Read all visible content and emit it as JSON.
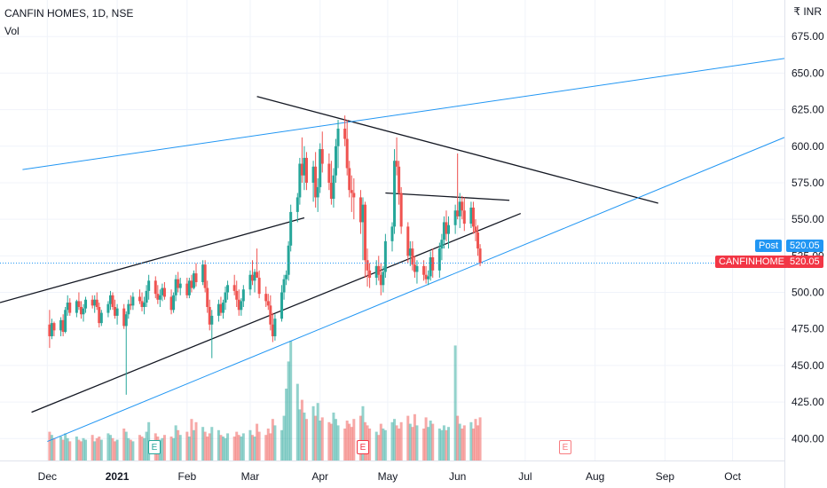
{
  "header": {
    "title": "CANFIN HOMES, 1D, NSE",
    "volume_label": "Vol",
    "currency": "₹ INR"
  },
  "price_tags": {
    "post": {
      "label": "Post",
      "value": "520.05",
      "color": "#2196f3"
    },
    "last": {
      "label": "CANFINHOME",
      "value": "520.05",
      "color": "#f23645"
    }
  },
  "earnings_marker": "E",
  "colors": {
    "up": "#26a69a",
    "down": "#ef5350",
    "trendline_black": "#131722",
    "trendline_blue": "#2196f3",
    "grid": "#f0f3fa",
    "axis_text": "#131722"
  },
  "chart_data": {
    "type": "candlestick",
    "symbol": "CANFINHOME",
    "interval": "1D",
    "exchange": "NSE",
    "ylim": [
      385,
      700
    ],
    "y_ticks": [
      400,
      425,
      450,
      475,
      500,
      525,
      550,
      575,
      600,
      625,
      650,
      675
    ],
    "y_tick_labels": [
      "400.00",
      "425.00",
      "450.00",
      "475.00",
      "500.00",
      "525.00",
      "550.00",
      "575.00",
      "600.00",
      "625.00",
      "650.00",
      "675.00"
    ],
    "x_tick_labels": [
      "Dec",
      "2021",
      "Feb",
      "Mar",
      "Apr",
      "May",
      "Jun",
      "Jul",
      "Aug",
      "Sep",
      "Oct"
    ],
    "last_price": 520.05,
    "candles": [
      [
        478,
        488,
        462,
        470
      ],
      [
        470,
        482,
        468,
        479
      ],
      [
        479,
        480,
        470,
        474
      ],
      [
        474,
        483,
        470,
        481
      ],
      [
        481,
        485,
        470,
        473
      ],
      [
        473,
        490,
        472,
        488
      ],
      [
        488,
        498,
        484,
        493
      ],
      [
        493,
        496,
        484,
        486
      ],
      [
        486,
        495,
        483,
        494
      ],
      [
        494,
        500,
        488,
        490
      ],
      [
        490,
        494,
        482,
        485
      ],
      [
        485,
        492,
        480,
        489
      ],
      [
        489,
        497,
        486,
        495
      ],
      [
        495,
        498,
        489,
        491
      ],
      [
        491,
        498,
        486,
        495
      ],
      [
        495,
        500,
        488,
        490
      ],
      [
        490,
        493,
        476,
        479
      ],
      [
        479,
        488,
        477,
        486
      ],
      [
        486,
        494,
        483,
        492
      ],
      [
        492,
        501,
        488,
        498
      ],
      [
        498,
        500,
        488,
        490
      ],
      [
        490,
        495,
        482,
        484
      ],
      [
        484,
        492,
        478,
        489
      ],
      [
        489,
        492,
        475,
        477
      ],
      [
        477,
        487,
        430,
        485
      ],
      [
        485,
        495,
        482,
        492
      ],
      [
        492,
        498,
        488,
        491
      ],
      [
        491,
        500,
        488,
        497
      ],
      [
        497,
        502,
        492,
        494
      ],
      [
        494,
        500,
        487,
        490
      ],
      [
        490,
        497,
        485,
        493
      ],
      [
        493,
        505,
        490,
        501
      ],
      [
        501,
        512,
        495,
        508
      ],
      [
        508,
        511,
        496,
        499
      ],
      [
        499,
        505,
        492,
        495
      ],
      [
        495,
        502,
        490,
        498
      ],
      [
        498,
        506,
        494,
        503
      ],
      [
        503,
        507,
        495,
        497
      ],
      [
        497,
        502,
        485,
        488
      ],
      [
        488,
        500,
        486,
        498
      ],
      [
        498,
        512,
        494,
        509
      ],
      [
        509,
        514,
        500,
        503
      ],
      [
        503,
        510,
        498,
        506
      ],
      [
        506,
        510,
        496,
        498
      ],
      [
        498,
        510,
        496,
        508
      ],
      [
        508,
        512,
        500,
        503
      ],
      [
        503,
        515,
        502,
        513
      ],
      [
        513,
        520,
        504,
        507
      ],
      [
        507,
        522,
        505,
        519
      ],
      [
        519,
        522,
        500,
        503
      ],
      [
        503,
        508,
        486,
        490
      ],
      [
        490,
        495,
        474,
        478
      ],
      [
        478,
        488,
        455,
        484
      ],
      [
        484,
        495,
        480,
        492
      ],
      [
        492,
        497,
        484,
        486
      ],
      [
        486,
        495,
        482,
        493
      ],
      [
        493,
        504,
        488,
        500
      ],
      [
        500,
        508,
        495,
        505
      ],
      [
        505,
        512,
        498,
        501
      ],
      [
        501,
        508,
        490,
        495
      ],
      [
        495,
        502,
        484,
        488
      ],
      [
        488,
        496,
        484,
        494
      ],
      [
        494,
        505,
        490,
        502
      ],
      [
        502,
        515,
        498,
        512
      ],
      [
        512,
        522,
        505,
        508
      ],
      [
        508,
        516,
        500,
        514
      ],
      [
        514,
        530,
        510,
        510
      ],
      [
        510,
        515,
        496,
        499
      ],
      [
        499,
        504,
        490,
        494
      ],
      [
        494,
        499,
        488,
        491
      ],
      [
        491,
        498,
        474,
        478
      ],
      [
        478,
        486,
        466,
        470
      ],
      [
        470,
        485,
        467,
        482
      ],
      [
        482,
        505,
        480,
        500
      ],
      [
        500,
        512,
        495,
        509
      ],
      [
        509,
        515,
        505,
        512
      ],
      [
        512,
        535,
        508,
        532
      ],
      [
        532,
        560,
        528,
        555
      ],
      [
        555,
        568,
        548,
        565
      ],
      [
        565,
        592,
        560,
        588
      ],
      [
        588,
        606,
        575,
        580
      ],
      [
        580,
        600,
        570,
        592
      ],
      [
        592,
        596,
        570,
        575
      ],
      [
        575,
        590,
        562,
        586
      ],
      [
        586,
        596,
        558,
        565
      ],
      [
        565,
        578,
        555,
        572
      ],
      [
        572,
        602,
        568,
        598
      ],
      [
        598,
        610,
        582,
        588
      ],
      [
        588,
        595,
        570,
        575
      ],
      [
        575,
        590,
        560,
        564
      ],
      [
        564,
        585,
        558,
        580
      ],
      [
        580,
        605,
        575,
        600
      ],
      [
        600,
        618,
        585,
        612
      ],
      [
        612,
        621,
        600,
        605
      ],
      [
        605,
        618,
        580,
        585
      ],
      [
        585,
        590,
        565,
        570
      ],
      [
        570,
        580,
        555,
        568
      ],
      [
        568,
        578,
        550,
        565
      ],
      [
        565,
        570,
        540,
        548
      ],
      [
        548,
        565,
        522,
        560
      ],
      [
        560,
        562,
        510,
        522
      ],
      [
        522,
        530,
        504,
        515
      ],
      [
        515,
        520,
        503,
        510
      ],
      [
        510,
        522,
        505,
        518
      ],
      [
        518,
        525,
        508,
        512
      ],
      [
        512,
        520,
        498,
        505
      ],
      [
        505,
        518,
        500,
        514
      ],
      [
        514,
        540,
        510,
        535
      ],
      [
        535,
        548,
        528,
        545
      ],
      [
        545,
        598,
        540,
        590
      ],
      [
        590,
        606,
        580,
        586
      ],
      [
        586,
        590,
        560,
        568
      ],
      [
        568,
        572,
        540,
        545
      ],
      [
        545,
        548,
        520,
        525
      ],
      [
        525,
        535,
        518,
        530
      ],
      [
        530,
        535,
        515,
        519
      ],
      [
        519,
        525,
        510,
        514
      ],
      [
        514,
        522,
        506,
        518
      ],
      [
        518,
        522,
        508,
        512
      ],
      [
        512,
        518,
        506,
        509
      ],
      [
        509,
        515,
        505,
        511
      ],
      [
        511,
        528,
        508,
        524
      ],
      [
        524,
        530,
        510,
        515
      ],
      [
        515,
        534,
        510,
        530
      ],
      [
        530,
        540,
        522,
        536
      ],
      [
        536,
        552,
        530,
        548
      ],
      [
        548,
        556,
        535,
        540
      ],
      [
        540,
        552,
        530,
        546
      ],
      [
        546,
        560,
        540,
        556
      ],
      [
        556,
        595,
        550,
        552
      ],
      [
        552,
        568,
        544,
        562
      ],
      [
        562,
        566,
        550,
        556
      ],
      [
        556,
        565,
        542,
        547
      ],
      [
        547,
        562,
        544,
        558
      ],
      [
        558,
        562,
        540,
        545
      ],
      [
        545,
        550,
        535,
        541
      ],
      [
        541,
        546,
        525,
        530
      ],
      [
        530,
        533,
        518,
        520.05
      ]
    ],
    "volumes": [
      1.8,
      1.6,
      1.4,
      1.5,
      1.3,
      1.7,
      1.4,
      1.2,
      1.5,
      1.3,
      1.2,
      1.4,
      1.3,
      1.6,
      1.2,
      1.4,
      1.5,
      1.3,
      1.7,
      1.6,
      1.4,
      1.2,
      1.3,
      2.0,
      1.8,
      1.4,
      1.3,
      1.2,
      1.6,
      1.5,
      1.4,
      1.8,
      2.4,
      1.7,
      1.5,
      1.3,
      1.4,
      1.6,
      1.5,
      1.4,
      2.2,
      1.9,
      1.6,
      1.8,
      1.5,
      2.6,
      1.9,
      2.4,
      2.1,
      1.8,
      1.5,
      1.7,
      2.1,
      1.9,
      1.6,
      1.5,
      1.4,
      1.7,
      1.5,
      1.8,
      1.6,
      1.5,
      1.7,
      1.9,
      1.6,
      1.5,
      2.3,
      1.8,
      1.6,
      2.0,
      1.7,
      2.6,
      2.2,
      1.9,
      2.8,
      4.5,
      6.2,
      7.5,
      4.8,
      3.2,
      3.8,
      3.0,
      2.6,
      3.4,
      2.8,
      3.6,
      2.5,
      2.7,
      2.4,
      2.3,
      3.0,
      2.6,
      2.2,
      2.0,
      2.5,
      2.3,
      2.1,
      2.6,
      2.8,
      3.4,
      2.4,
      2.2,
      2.0,
      1.8,
      1.6,
      2.3,
      2.0,
      1.9,
      2.4,
      2.6,
      2.2,
      2.0,
      2.4,
      2.8,
      2.3,
      2.1,
      2.9,
      2.2,
      2.0,
      2.7,
      2.1,
      2.5,
      2.3,
      2.0,
      1.9,
      2.2,
      1.9,
      2.1,
      7.2,
      2.8,
      2.3,
      2.0,
      2.2,
      2.4,
      2.0,
      2.6,
      2.2,
      2.7
    ],
    "trendlines": [
      {
        "color": "black",
        "points": [
          [
            "2020-11-10",
            493
          ],
          [
            "2021-03-25",
            551
          ]
        ]
      },
      {
        "color": "black",
        "points": [
          [
            "2020-11-24",
            418
          ],
          [
            "2021-06-29",
            554
          ]
        ]
      },
      {
        "color": "black",
        "points": [
          [
            "2021-03-04",
            634
          ],
          [
            "2021-08-29",
            561
          ]
        ]
      },
      {
        "color": "black",
        "points": [
          [
            "2021-04-30",
            568
          ],
          [
            "2021-06-24",
            563
          ]
        ]
      },
      {
        "color": "blue",
        "points": [
          [
            "2020-11-20",
            584
          ],
          [
            "2021-10-24",
            660
          ]
        ]
      },
      {
        "color": "blue",
        "points": [
          [
            "2020-12-01",
            398
          ],
          [
            "2021-10-24",
            606
          ]
        ]
      }
    ]
  }
}
